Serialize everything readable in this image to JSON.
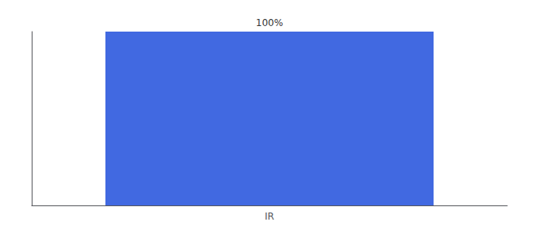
{
  "chart_data": {
    "type": "bar",
    "categories": [
      "IR"
    ],
    "values": [
      100
    ],
    "value_labels": [
      "100%"
    ],
    "data_labels": true,
    "color": "#4169e1",
    "ylim": [
      0,
      100
    ],
    "grid": false,
    "tick_labels": "x"
  }
}
